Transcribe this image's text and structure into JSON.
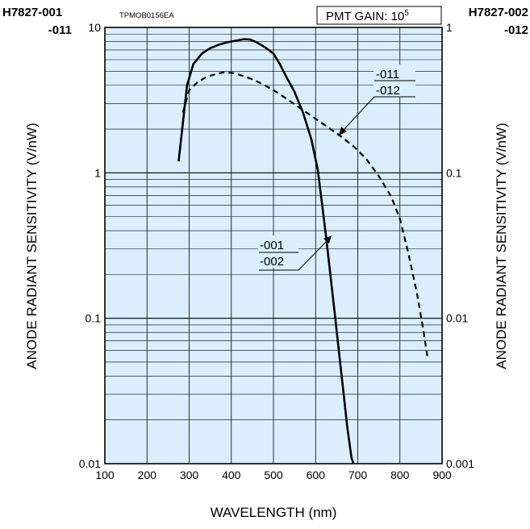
{
  "chart_data": {
    "type": "line",
    "title": "",
    "xlabel": "WAVELENGTH (nm)",
    "ylabel_left": "ANODE RADIANT SENSITIVITY (V/nW)",
    "ylabel_right": "ANODE RADIANT SENSITIVITY (V/nW)",
    "xlim": [
      100,
      900
    ],
    "ylim_left": [
      0.01,
      10
    ],
    "ylim_right": [
      0.001,
      1
    ],
    "y_scale": "log",
    "grid": true,
    "x_ticks": [
      "100",
      "200",
      "300",
      "400",
      "500",
      "600",
      "700",
      "800",
      "900"
    ],
    "y_ticks_left": [
      "0.01",
      "0.1",
      "1",
      "10"
    ],
    "y_ticks_right": [
      "0.001",
      "0.01",
      "0.1",
      "1"
    ],
    "header_left": [
      "H7827-001",
      "-011"
    ],
    "header_right": [
      "H7827-002",
      "-012"
    ],
    "code_label": "TPMOB0156EA",
    "gain_box": {
      "text": "PMT GAIN: 10",
      "sup": "5"
    },
    "series": [
      {
        "labels": [
          "-001",
          "-002"
        ],
        "style": "solid",
        "axis": "left",
        "points": [
          [
            275,
            1.2
          ],
          [
            285,
            2.2
          ],
          [
            295,
            4.0
          ],
          [
            310,
            5.6
          ],
          [
            330,
            6.6
          ],
          [
            350,
            7.2
          ],
          [
            370,
            7.6
          ],
          [
            390,
            7.9
          ],
          [
            410,
            8.1
          ],
          [
            430,
            8.3
          ],
          [
            445,
            8.25
          ],
          [
            460,
            7.9
          ],
          [
            480,
            7.3
          ],
          [
            500,
            6.6
          ],
          [
            515,
            5.6
          ],
          [
            530,
            4.6
          ],
          [
            550,
            3.6
          ],
          [
            570,
            2.6
          ],
          [
            590,
            1.7
          ],
          [
            605,
            1.05
          ],
          [
            615,
            0.62
          ],
          [
            625,
            0.36
          ],
          [
            635,
            0.2
          ],
          [
            645,
            0.11
          ],
          [
            655,
            0.06
          ],
          [
            665,
            0.033
          ],
          [
            675,
            0.018
          ],
          [
            685,
            0.011
          ],
          [
            690,
            0.01
          ]
        ]
      },
      {
        "labels": [
          "-011",
          "-012"
        ],
        "style": "dashed",
        "axis": "right",
        "points": [
          [
            285,
            0.26
          ],
          [
            300,
            0.37
          ],
          [
            320,
            0.42
          ],
          [
            340,
            0.455
          ],
          [
            360,
            0.475
          ],
          [
            380,
            0.49
          ],
          [
            400,
            0.488
          ],
          [
            420,
            0.472
          ],
          [
            450,
            0.44
          ],
          [
            480,
            0.4
          ],
          [
            510,
            0.355
          ],
          [
            540,
            0.31
          ],
          [
            570,
            0.27
          ],
          [
            600,
            0.235
          ],
          [
            630,
            0.205
          ],
          [
            660,
            0.178
          ],
          [
            690,
            0.152
          ],
          [
            720,
            0.125
          ],
          [
            750,
            0.095
          ],
          [
            780,
            0.068
          ],
          [
            800,
            0.048
          ],
          [
            820,
            0.028
          ],
          [
            840,
            0.015
          ],
          [
            855,
            0.0085
          ],
          [
            865,
            0.0055
          ]
        ]
      }
    ]
  }
}
